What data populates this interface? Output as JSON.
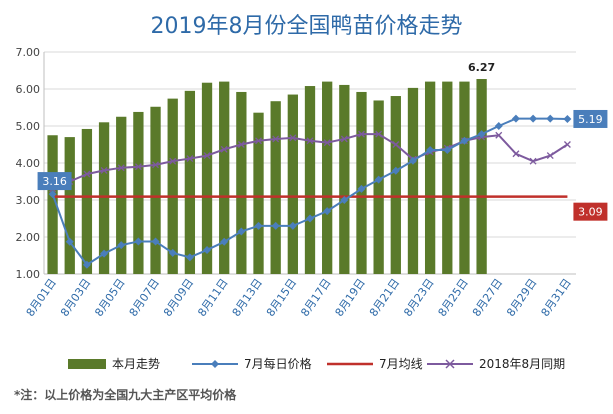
{
  "chart_data": {
    "type": "bar",
    "title": "2019年8月份全国鸭苗价格走势",
    "ylim": [
      1.0,
      7.0
    ],
    "y_ticks": [
      "1.00",
      "2.00",
      "3.00",
      "4.00",
      "5.00",
      "6.00",
      "7.00"
    ],
    "grid": true,
    "legend_position": "bottom",
    "categories": [
      "8月01日",
      "8月02日",
      "8月03日",
      "8月04日",
      "8月05日",
      "8月06日",
      "8月07日",
      "8月08日",
      "8月09日",
      "8月10日",
      "8月11日",
      "8月12日",
      "8月13日",
      "8月14日",
      "8月15日",
      "8月16日",
      "8月17日",
      "8月18日",
      "8月19日",
      "8月20日",
      "8月21日",
      "8月22日",
      "8月23日",
      "8月24日",
      "8月25日",
      "8月26日",
      "8月27日",
      "8月28日",
      "8月29日",
      "8月30日",
      "8月31日"
    ],
    "x_tick_labels": [
      "8月01日",
      "8月03日",
      "8月05日",
      "8月07日",
      "8月09日",
      "8月11日",
      "8月13日",
      "8月15日",
      "8月17日",
      "8月19日",
      "8月21日",
      "8月23日",
      "8月25日",
      "8月27日",
      "8月29日",
      "8月31日"
    ],
    "series": [
      {
        "name": "本月走势",
        "type": "bar",
        "color": "#5a7a2a",
        "values": [
          4.75,
          4.7,
          4.92,
          5.1,
          5.25,
          5.38,
          5.52,
          5.74,
          5.95,
          6.17,
          6.2,
          5.92,
          5.36,
          5.67,
          5.85,
          6.08,
          6.2,
          6.11,
          5.92,
          5.69,
          5.81,
          6.03,
          6.2,
          6.2,
          6.2,
          6.27,
          null,
          null,
          null,
          null,
          null
        ]
      },
      {
        "name": "7月每日价格",
        "type": "line",
        "color": "#4a7ebb",
        "marker": "diamond",
        "values": [
          3.16,
          1.87,
          1.25,
          1.55,
          1.78,
          1.88,
          1.88,
          1.57,
          1.45,
          1.65,
          1.87,
          2.15,
          2.3,
          2.3,
          2.3,
          2.5,
          2.7,
          3.0,
          3.3,
          3.55,
          3.79,
          4.06,
          4.35,
          4.35,
          4.6,
          4.78,
          5.0,
          5.2,
          5.2,
          5.2,
          5.19
        ]
      },
      {
        "name": "7月均线",
        "type": "line",
        "color": "#c0302b",
        "values": [
          3.09,
          3.09,
          3.09,
          3.09,
          3.09,
          3.09,
          3.09,
          3.09,
          3.09,
          3.09,
          3.09,
          3.09,
          3.09,
          3.09,
          3.09,
          3.09,
          3.09,
          3.09,
          3.09,
          3.09,
          3.09,
          3.09,
          3.09,
          3.09,
          3.09,
          3.09,
          3.09,
          3.09,
          3.09,
          3.09,
          3.09
        ]
      },
      {
        "name": "2018年8月同期",
        "type": "line",
        "color": "#7d5a9e",
        "marker": "x",
        "values": [
          3.3,
          3.5,
          3.7,
          3.8,
          3.87,
          3.9,
          3.95,
          4.05,
          4.12,
          4.2,
          4.37,
          4.5,
          4.6,
          4.65,
          4.68,
          4.6,
          4.55,
          4.65,
          4.78,
          4.78,
          4.5,
          4.1,
          4.3,
          4.4,
          4.6,
          4.7,
          4.75,
          4.25,
          4.05,
          4.2,
          4.5
        ]
      }
    ],
    "annotations": [
      {
        "text": "6.27",
        "series": "本月走势",
        "index": 25,
        "style": "plain"
      },
      {
        "text": "3.16",
        "series": "7月每日价格",
        "index": 0,
        "style": "box",
        "color": "#4a7ebb"
      },
      {
        "text": "5.19",
        "series": "7月每日价格",
        "index": 30,
        "style": "box",
        "color": "#4a7ebb"
      },
      {
        "text": "3.09",
        "series": "7月均线",
        "index": 30,
        "style": "box",
        "color": "#c0302b"
      }
    ]
  },
  "footnote": "*注：以上价格为全国九大主产区平均价格"
}
